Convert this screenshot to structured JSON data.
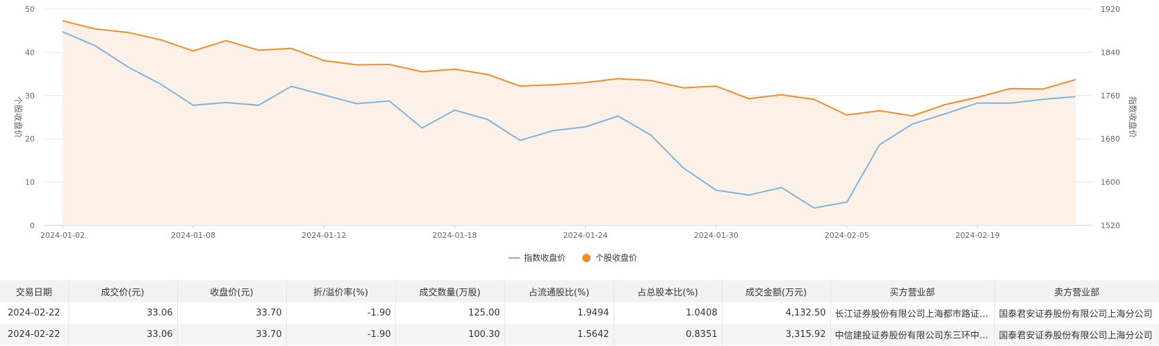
{
  "chart_data": {
    "type": "line",
    "title": "",
    "left_axis": {
      "label": "个股收盘价",
      "ylim": [
        0,
        50
      ],
      "ticks": [
        0,
        10,
        20,
        30,
        40,
        50
      ]
    },
    "right_axis": {
      "label": "指数收盘价",
      "ylim": [
        1520,
        1920
      ],
      "ticks": [
        1520,
        1600,
        1680,
        1760,
        1840,
        1920
      ]
    },
    "x_tick_labels": [
      "2024-01-02",
      "2024-01-08",
      "2024-01-12",
      "2024-01-18",
      "2024-01-24",
      "2024-01-30",
      "2024-02-05",
      "2024-02-19"
    ],
    "x_tick_index": [
      0,
      4,
      8,
      12,
      16,
      20,
      24,
      28
    ],
    "grid": true,
    "legend_position": "bottom-center",
    "series": [
      {
        "name": "指数收盘价",
        "axis": "right",
        "color": "#7cb5de",
        "values": [
          1878,
          1852,
          1813,
          1781,
          1742,
          1747,
          1742,
          1777,
          1761,
          1745,
          1750,
          1700,
          1733,
          1716,
          1677,
          1695,
          1702,
          1722,
          1687,
          1626,
          1585,
          1576,
          1590,
          1552,
          1563,
          1669,
          1707,
          1726,
          1746,
          1746,
          1753,
          1758
        ]
      },
      {
        "name": "个股收盘价",
        "axis": "left",
        "color": "#f28c28",
        "fill": "#fdf0e6",
        "values": [
          47.3,
          45.4,
          44.6,
          42.9,
          40.3,
          42.7,
          40.5,
          40.9,
          38.1,
          37.1,
          37.2,
          35.5,
          36.1,
          34.9,
          32.2,
          32.5,
          33.0,
          33.9,
          33.5,
          31.8,
          32.2,
          29.3,
          30.2,
          29.1,
          25.5,
          26.5,
          25.3,
          27.9,
          29.6,
          31.6,
          31.5,
          33.7
        ]
      }
    ]
  },
  "table": {
    "headers": [
      "交易日期",
      "成交价(元)",
      "收盘价(元)",
      "折/溢价率(%)",
      "成交数量(万股)",
      "占流通股比(%)",
      "占总股本比(%)",
      "成交金额(万元)",
      "买方营业部",
      "卖方营业部"
    ],
    "rows": [
      [
        "2024-02-22",
        "33.06",
        "33.70",
        "-1.90",
        "125.00",
        "1.9494",
        "1.0408",
        "4,132.50",
        "长江证券股份有限公司上海都市路证券营业部",
        "国泰君安证券股份有限公司上海分公司"
      ],
      [
        "2024-02-22",
        "33.06",
        "33.70",
        "-1.90",
        "100.30",
        "1.5642",
        "0.8351",
        "3,315.92",
        "中信建投证券股份有限公司东三环中路证券营业部",
        "国泰君安证券股份有限公司上海分公司"
      ]
    ]
  }
}
